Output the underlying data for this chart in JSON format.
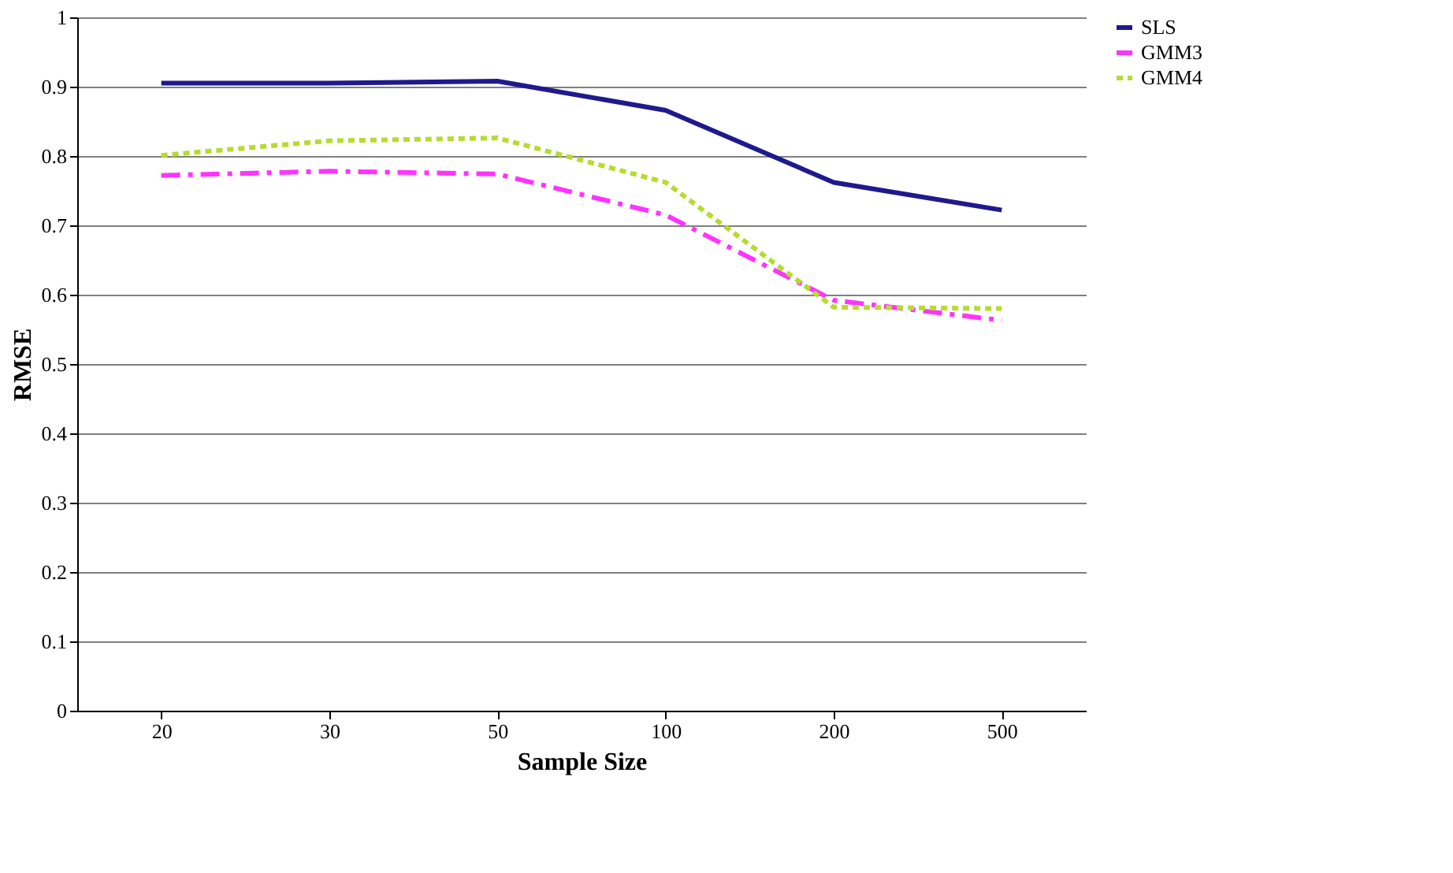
{
  "chart_data": {
    "type": "line",
    "xlabel": "Sample Size",
    "ylabel": "RMSE",
    "categories": [
      "20",
      "30",
      "50",
      "100",
      "200",
      "500"
    ],
    "series": [
      {
        "name": "SLS",
        "color": "#1f1a8c",
        "line_style": "solid",
        "values": [
          0.905,
          0.905,
          0.908,
          0.866,
          0.762,
          0.722
        ]
      },
      {
        "name": "GMM3",
        "color": "#ff33ff",
        "line_style": "dashed",
        "values": [
          0.772,
          0.778,
          0.774,
          0.715,
          0.592,
          0.563
        ]
      },
      {
        "name": "GMM4",
        "color": "#b5dc2e",
        "line_style": "dotted",
        "values": [
          0.801,
          0.822,
          0.826,
          0.762,
          0.582,
          0.58
        ]
      }
    ],
    "ylim": [
      0,
      1
    ],
    "yticks": [
      0,
      0.1,
      0.2,
      0.3,
      0.4,
      0.5,
      0.6,
      0.7,
      0.8,
      0.9,
      1
    ],
    "grid": "y",
    "legend": "right",
    "marker": "none"
  }
}
